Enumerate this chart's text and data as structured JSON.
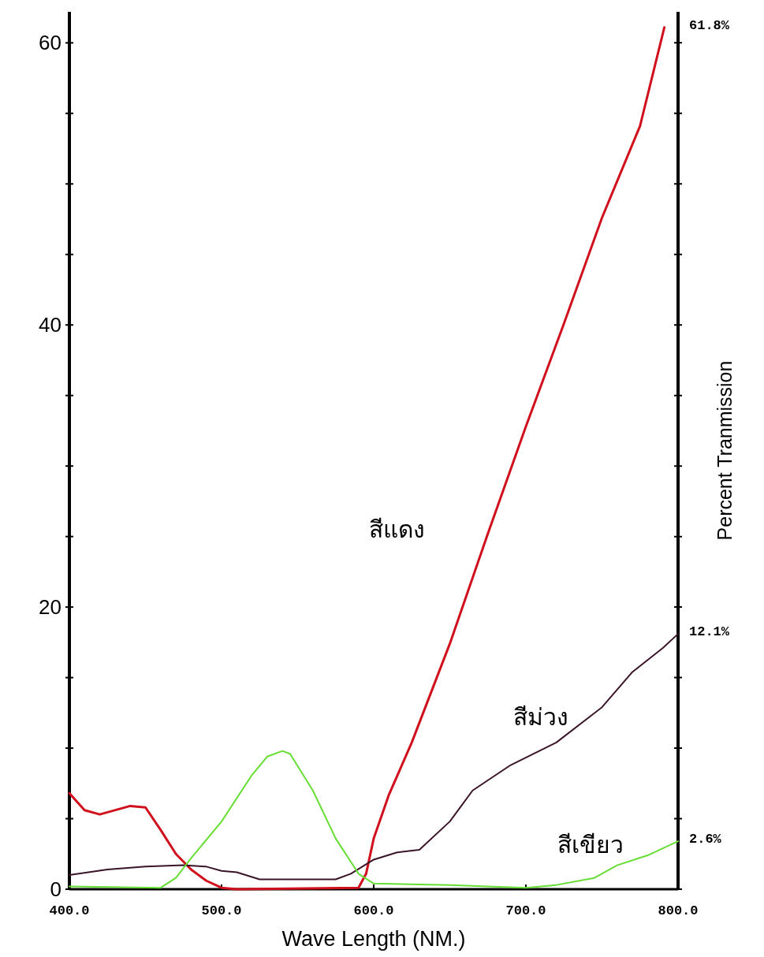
{
  "chart_data": {
    "type": "line",
    "xlabel": "Wave Length (NM.)",
    "ylabel": "Percent Tranmission",
    "xlim": [
      400,
      800
    ],
    "ylim": [
      0,
      62.2
    ],
    "xticks": [
      {
        "value": 400,
        "label": "400.0"
      },
      {
        "value": 500,
        "label": "500.0"
      },
      {
        "value": 600,
        "label": "600.0"
      },
      {
        "value": 700,
        "label": "700.0"
      },
      {
        "value": 800,
        "label": "800.0"
      }
    ],
    "yticks": [
      0,
      {
        "value": 5,
        "label": null
      },
      {
        "value": 10,
        "label": null
      },
      {
        "value": 15,
        "label": null
      },
      20,
      {
        "value": 25,
        "label": null
      },
      {
        "value": 30,
        "label": null
      },
      {
        "value": 35,
        "label": null
      },
      40,
      {
        "value": 45,
        "label": null
      },
      {
        "value": 50,
        "label": null
      },
      {
        "value": 55,
        "label": null
      },
      60
    ],
    "grid": false,
    "legend": false,
    "series": [
      {
        "name": "สีแดง",
        "color": "#d0101c",
        "x": [
          400,
          410,
          420,
          440,
          450,
          460,
          470,
          480,
          490,
          500,
          510,
          590,
          595,
          600,
          610,
          625,
          650,
          675,
          700,
          725,
          750,
          775,
          791
        ],
        "values": [
          6.8,
          5.6,
          5.3,
          5.9,
          5.8,
          4.2,
          2.5,
          1.4,
          0.6,
          0.1,
          0,
          0.1,
          1.1,
          3.6,
          6.7,
          10.4,
          17.4,
          25.2,
          32.8,
          40.1,
          47.6,
          54.1,
          61.1
        ]
      },
      {
        "name": "สีม่วง",
        "color": "#3a1428",
        "x": [
          400,
          425,
          450,
          475,
          490,
          500,
          510,
          525,
          550,
          575,
          585,
          600,
          615,
          630,
          650,
          665,
          690,
          720,
          750,
          770,
          790,
          800
        ],
        "values": [
          1.0,
          1.4,
          1.6,
          1.7,
          1.6,
          1.3,
          1.2,
          0.7,
          0.7,
          0.7,
          1.1,
          2.1,
          2.6,
          2.8,
          4.8,
          7.0,
          8.8,
          10.4,
          12.9,
          15.4,
          17.1,
          18.1
        ]
      },
      {
        "name": "สีเขียว",
        "color": "#66dd33",
        "x": [
          400,
          460,
          470,
          480,
          500,
          520,
          530,
          540,
          545,
          560,
          575,
          590,
          600,
          650,
          700,
          720,
          745,
          760,
          780,
          800
        ],
        "values": [
          0.2,
          0.1,
          0.8,
          2.2,
          4.8,
          8.1,
          9.4,
          9.8,
          9.6,
          7.0,
          3.6,
          1.1,
          0.4,
          0.3,
          0.1,
          0.3,
          0.8,
          1.7,
          2.4,
          3.4
        ]
      }
    ],
    "annotations": [
      "61.8%",
      "12.1%",
      "2.6%"
    ]
  }
}
